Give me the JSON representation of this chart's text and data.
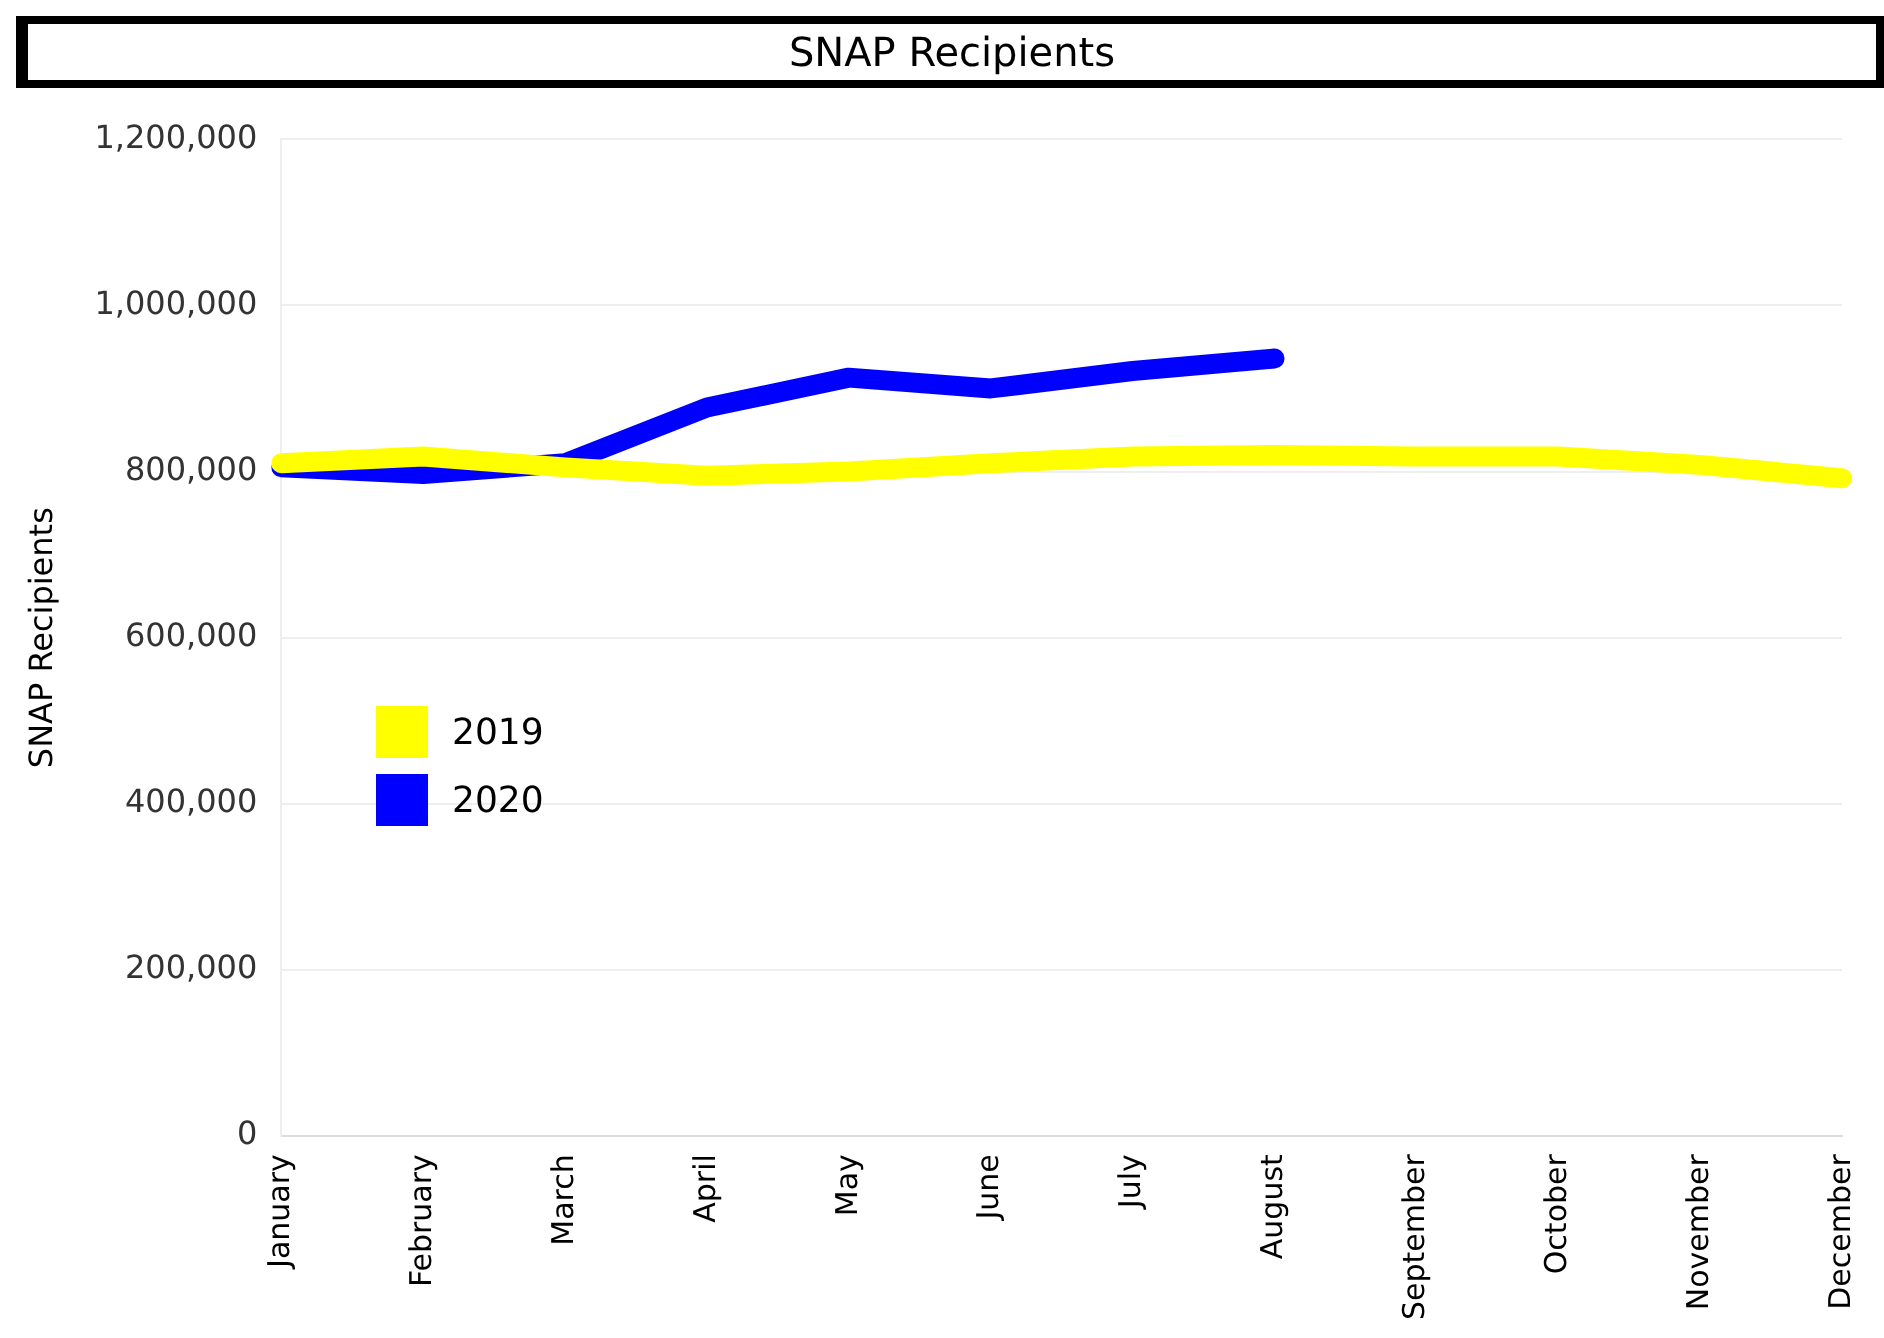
{
  "chart_data": {
    "type": "line",
    "title": "SNAP Recipients",
    "ylabel": "SNAP Recipients",
    "categories": [
      "January",
      "February",
      "March",
      "April",
      "May",
      "June",
      "July",
      "August",
      "September",
      "October",
      "November",
      "December"
    ],
    "series": [
      {
        "name": "2019",
        "color": "#ffff00",
        "values": [
          810000,
          818000,
          805000,
          795000,
          800000,
          810000,
          818000,
          820000,
          818000,
          818000,
          808000,
          792000
        ]
      },
      {
        "name": "2020",
        "color": "#0000ff",
        "values": [
          805000,
          797000,
          810000,
          877000,
          913000,
          900000,
          921000,
          936000,
          null,
          null,
          null,
          null
        ]
      }
    ],
    "ylim": [
      0,
      1200000
    ],
    "yticks": [
      {
        "value": 0,
        "label": "0"
      },
      {
        "value": 200000,
        "label": "200,000"
      },
      {
        "value": 400000,
        "label": "400,000"
      },
      {
        "value": 600000,
        "label": "600,000"
      },
      {
        "value": 800000,
        "label": "800,000"
      },
      {
        "value": 1000000,
        "label": "1,000,000"
      },
      {
        "value": 1200000,
        "label": "1,200,000"
      }
    ],
    "grid": "y",
    "legend": "bottom left",
    "marker": "none",
    "line_style": "solid"
  }
}
